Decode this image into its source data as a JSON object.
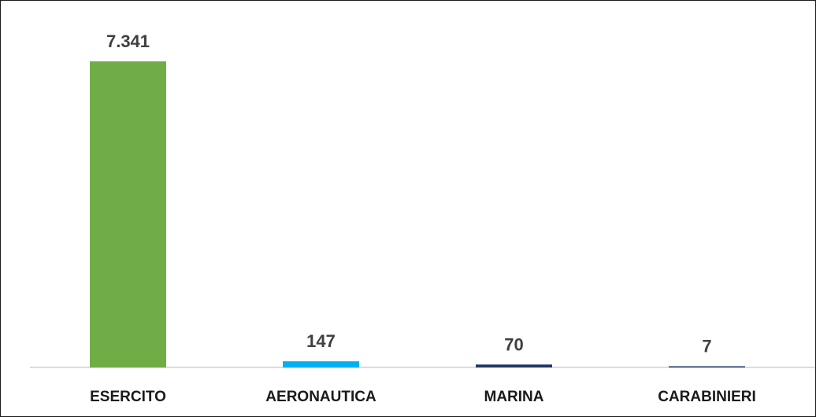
{
  "chart_data": {
    "type": "bar",
    "categories": [
      "ESERCITO",
      "AERONAUTICA",
      "MARINA",
      "CARABINIERI"
    ],
    "values": [
      7341,
      147,
      70,
      7
    ],
    "value_labels": [
      "7.341",
      "147",
      "70",
      "7"
    ],
    "colors": [
      "#70AD47",
      "#00B0F0",
      "#1F3864",
      "#1F3864"
    ],
    "title": "",
    "xlabel": "",
    "ylabel": "",
    "ylim": [
      0,
      7341
    ],
    "grid": false,
    "legend": "none"
  }
}
